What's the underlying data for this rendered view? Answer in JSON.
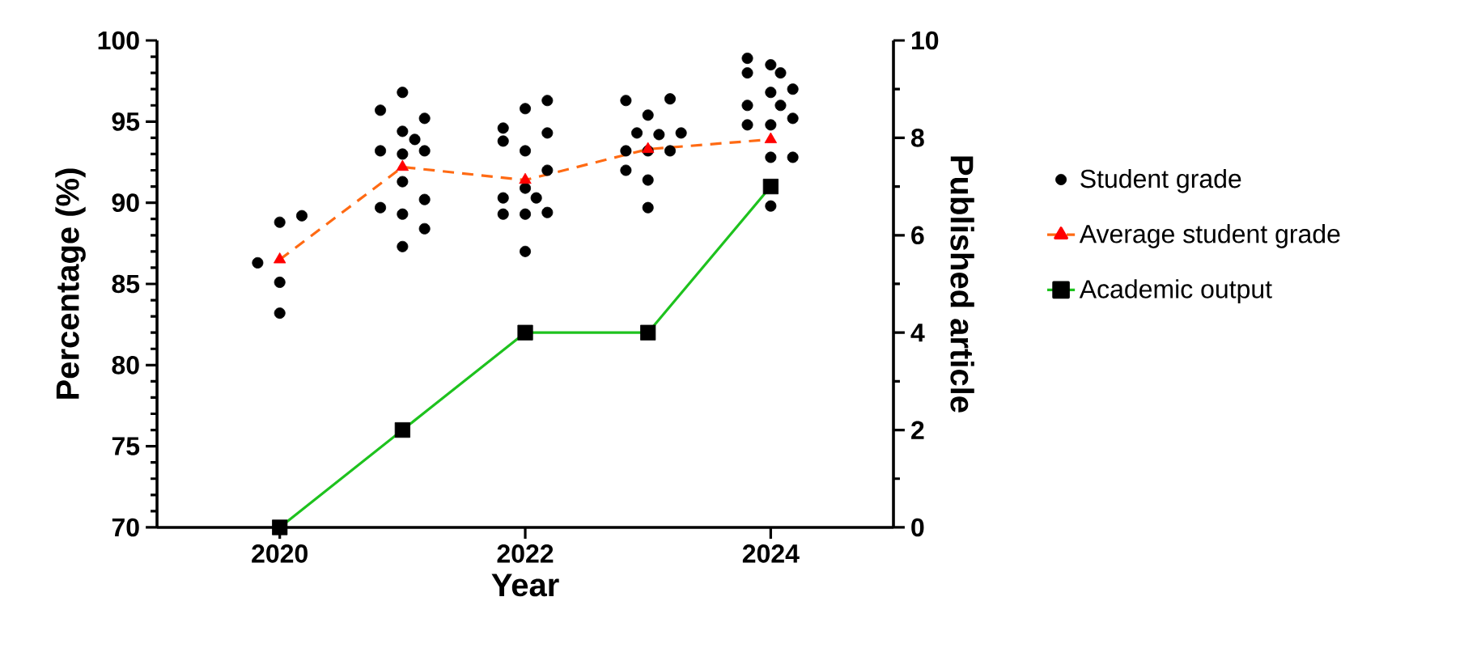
{
  "chart_data": {
    "type": "line",
    "xlabel": "Year",
    "ylabel": "Percentage (%)",
    "y2label": "Published article",
    "x": [
      2020,
      2021,
      2022,
      2023,
      2024
    ],
    "xlim": [
      2019,
      2025
    ],
    "xticks": [
      2020,
      2022,
      2024
    ],
    "ylim": [
      70,
      100
    ],
    "yticks": [
      70,
      75,
      80,
      85,
      90,
      95,
      100
    ],
    "y2lim": [
      0,
      10
    ],
    "y2ticks": [
      0,
      2,
      4,
      6,
      8,
      10
    ],
    "legend": "right",
    "grid": false,
    "series": [
      {
        "name": "Student grade",
        "type": "scatter",
        "marker": "circle",
        "color": "#000000",
        "axis": "y",
        "x": [
          2019.82,
          2020.0,
          2020.18,
          2020.0,
          2020.0,
          2020.82,
          2021.0,
          2021.18,
          2021.0,
          2021.1,
          2020.82,
          2021.0,
          2021.18,
          2021.0,
          2020.82,
          2021.0,
          2021.18,
          2021.18,
          2021.0,
          2021.82,
          2021.82,
          2022.0,
          2022.18,
          2022.18,
          2022.0,
          2022.18,
          2021.82,
          2022.0,
          2022.09,
          2021.82,
          2022.0,
          2022.18,
          2022.0,
          2022.82,
          2023.0,
          2023.18,
          2022.91,
          2023.09,
          2023.27,
          2022.82,
          2023.0,
          2023.18,
          2022.82,
          2023.0,
          2023.0,
          2023.81,
          2023.81,
          2024.0,
          2024.08,
          2024.18,
          2024.0,
          2024.08,
          2023.81,
          2024.18,
          2023.81,
          2024.0,
          2024.0,
          2024.18,
          2024.0
        ],
        "values": [
          86.3,
          88.8,
          89.2,
          85.1,
          83.2,
          95.7,
          96.8,
          95.2,
          94.4,
          93.9,
          93.2,
          93.0,
          93.2,
          91.3,
          89.7,
          89.3,
          90.2,
          88.4,
          87.3,
          94.6,
          93.8,
          95.8,
          96.3,
          94.3,
          93.2,
          92.0,
          90.3,
          90.9,
          90.3,
          89.3,
          89.3,
          89.4,
          87.0,
          96.3,
          95.4,
          96.4,
          94.3,
          94.2,
          94.3,
          93.2,
          93.2,
          93.2,
          92.0,
          91.4,
          89.7,
          98.9,
          98.0,
          98.5,
          98.0,
          97.0,
          96.8,
          96.0,
          96.0,
          95.2,
          94.8,
          94.8,
          92.8,
          92.8,
          89.8
        ]
      },
      {
        "name": "Average student grade",
        "marker": "triangle",
        "line_style": "dashed",
        "color": "#ff6a13",
        "colors": [
          "#ff0000",
          "#ff0000",
          "#ff0000",
          "#ff0000",
          "#ff0000"
        ],
        "axis": "y",
        "values": [
          86.5,
          92.2,
          91.4,
          93.3,
          93.9
        ]
      },
      {
        "name": "Academic output",
        "marker": "square",
        "line_style": "solid",
        "color": "#1ec21e",
        "colors": [
          "#000000",
          "#000000",
          "#000000",
          "#000000",
          "#000000"
        ],
        "axis": "y2",
        "values": [
          0,
          2,
          4,
          4,
          7
        ]
      }
    ]
  }
}
